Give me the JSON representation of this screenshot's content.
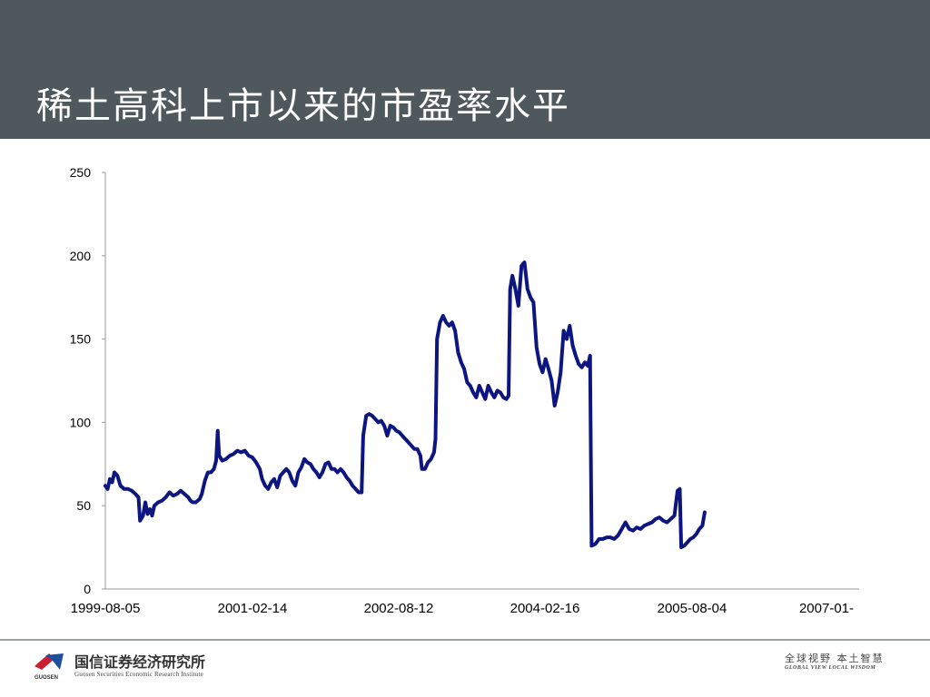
{
  "header": {
    "title": "稀土高科上市以来的市盈率水平"
  },
  "footer": {
    "org_cn": "国信证券经济研究所",
    "org_en": "Guosen Securities Economic Research Institute",
    "logo_text": "GUOSEN",
    "slogan_cn": "全球视野  本土智慧",
    "slogan_en": "GLOBAL VIEW   LOCAL WISDOM"
  },
  "colors": {
    "header_bg": "#4f585c",
    "series": "#0d1580",
    "logo_red": "#c8202e",
    "logo_blue": "#1e4f9a"
  },
  "chart_data": {
    "type": "line",
    "title": "",
    "xlabel": "",
    "ylabel": "",
    "ylim": [
      0,
      250
    ],
    "yticks": [
      0,
      50,
      100,
      150,
      200,
      250
    ],
    "xticklabels": [
      "1999-08-05",
      "2001-02-14",
      "2002-08-12",
      "2004-02-16",
      "2005-08-04",
      "2007-01-"
    ],
    "grid": false,
    "legend": "none",
    "series": [
      {
        "points": [
          [
            0.0,
            62
          ],
          [
            0.003,
            60
          ],
          [
            0.006,
            66
          ],
          [
            0.009,
            64
          ],
          [
            0.012,
            70
          ],
          [
            0.016,
            68
          ],
          [
            0.02,
            62
          ],
          [
            0.025,
            60
          ],
          [
            0.03,
            60
          ],
          [
            0.035,
            59
          ],
          [
            0.04,
            57
          ],
          [
            0.044,
            55
          ],
          [
            0.046,
            41
          ],
          [
            0.05,
            44
          ],
          [
            0.053,
            52
          ],
          [
            0.056,
            45
          ],
          [
            0.059,
            48
          ],
          [
            0.062,
            44
          ],
          [
            0.065,
            50
          ],
          [
            0.07,
            52
          ],
          [
            0.075,
            53
          ],
          [
            0.08,
            55
          ],
          [
            0.085,
            58
          ],
          [
            0.09,
            56
          ],
          [
            0.095,
            57
          ],
          [
            0.1,
            59
          ],
          [
            0.105,
            57
          ],
          [
            0.11,
            55
          ],
          [
            0.113,
            53
          ],
          [
            0.116,
            52
          ],
          [
            0.12,
            52
          ],
          [
            0.125,
            54
          ],
          [
            0.128,
            57
          ],
          [
            0.132,
            65
          ],
          [
            0.136,
            70
          ],
          [
            0.14,
            70
          ],
          [
            0.144,
            72
          ],
          [
            0.147,
            77
          ],
          [
            0.149,
            95
          ],
          [
            0.151,
            80
          ],
          [
            0.155,
            77
          ],
          [
            0.16,
            78
          ],
          [
            0.165,
            80
          ],
          [
            0.17,
            81
          ],
          [
            0.175,
            83
          ],
          [
            0.18,
            82
          ],
          [
            0.185,
            83
          ],
          [
            0.19,
            80
          ],
          [
            0.195,
            79
          ],
          [
            0.2,
            76
          ],
          [
            0.205,
            72
          ],
          [
            0.208,
            66
          ],
          [
            0.212,
            62
          ],
          [
            0.216,
            60
          ],
          [
            0.22,
            64
          ],
          [
            0.224,
            66
          ],
          [
            0.228,
            61
          ],
          [
            0.232,
            68
          ],
          [
            0.236,
            70
          ],
          [
            0.24,
            72
          ],
          [
            0.244,
            70
          ],
          [
            0.248,
            65
          ],
          [
            0.252,
            62
          ],
          [
            0.256,
            70
          ],
          [
            0.26,
            73
          ],
          [
            0.264,
            78
          ],
          [
            0.268,
            76
          ],
          [
            0.272,
            75
          ],
          [
            0.276,
            72
          ],
          [
            0.28,
            70
          ],
          [
            0.284,
            67
          ],
          [
            0.288,
            70
          ],
          [
            0.292,
            75
          ],
          [
            0.296,
            76
          ],
          [
            0.3,
            72
          ],
          [
            0.304,
            72
          ],
          [
            0.308,
            70
          ],
          [
            0.312,
            72
          ],
          [
            0.316,
            70
          ],
          [
            0.32,
            67
          ],
          [
            0.324,
            65
          ],
          [
            0.328,
            62
          ],
          [
            0.332,
            60
          ],
          [
            0.336,
            58
          ],
          [
            0.34,
            58
          ],
          [
            0.342,
            92
          ],
          [
            0.346,
            104
          ],
          [
            0.35,
            105
          ],
          [
            0.354,
            104
          ],
          [
            0.358,
            102
          ],
          [
            0.362,
            100
          ],
          [
            0.366,
            101
          ],
          [
            0.37,
            98
          ],
          [
            0.374,
            92
          ],
          [
            0.378,
            98
          ],
          [
            0.382,
            97
          ],
          [
            0.386,
            95
          ],
          [
            0.39,
            94
          ],
          [
            0.394,
            92
          ],
          [
            0.398,
            90
          ],
          [
            0.402,
            88
          ],
          [
            0.406,
            86
          ],
          [
            0.41,
            84
          ],
          [
            0.414,
            84
          ],
          [
            0.418,
            80
          ],
          [
            0.42,
            72
          ],
          [
            0.424,
            72
          ],
          [
            0.428,
            76
          ],
          [
            0.432,
            78
          ],
          [
            0.436,
            82
          ],
          [
            0.438,
            90
          ],
          [
            0.44,
            150
          ],
          [
            0.444,
            160
          ],
          [
            0.448,
            164
          ],
          [
            0.452,
            160
          ],
          [
            0.456,
            158
          ],
          [
            0.46,
            160
          ],
          [
            0.464,
            155
          ],
          [
            0.468,
            142
          ],
          [
            0.472,
            136
          ],
          [
            0.476,
            132
          ],
          [
            0.48,
            124
          ],
          [
            0.484,
            122
          ],
          [
            0.488,
            118
          ],
          [
            0.492,
            115
          ],
          [
            0.496,
            122
          ],
          [
            0.5,
            118
          ],
          [
            0.504,
            114
          ],
          [
            0.508,
            122
          ],
          [
            0.512,
            118
          ],
          [
            0.516,
            115
          ],
          [
            0.52,
            119
          ],
          [
            0.524,
            118
          ],
          [
            0.528,
            115
          ],
          [
            0.532,
            114
          ],
          [
            0.535,
            116
          ],
          [
            0.537,
            180
          ],
          [
            0.54,
            188
          ],
          [
            0.544,
            180
          ],
          [
            0.548,
            170
          ],
          [
            0.552,
            194
          ],
          [
            0.556,
            196
          ],
          [
            0.56,
            180
          ],
          [
            0.564,
            175
          ],
          [
            0.568,
            172
          ],
          [
            0.572,
            145
          ],
          [
            0.576,
            135
          ],
          [
            0.58,
            130
          ],
          [
            0.584,
            138
          ],
          [
            0.588,
            132
          ],
          [
            0.592,
            125
          ],
          [
            0.596,
            110
          ],
          [
            0.6,
            118
          ],
          [
            0.604,
            130
          ],
          [
            0.608,
            155
          ],
          [
            0.612,
            150
          ],
          [
            0.616,
            158
          ],
          [
            0.62,
            146
          ],
          [
            0.624,
            140
          ],
          [
            0.628,
            135
          ],
          [
            0.632,
            133
          ],
          [
            0.636,
            136
          ],
          [
            0.64,
            134
          ],
          [
            0.643,
            140
          ],
          [
            0.645,
            26
          ],
          [
            0.65,
            27
          ],
          [
            0.655,
            30
          ],
          [
            0.66,
            30
          ],
          [
            0.665,
            31
          ],
          [
            0.67,
            31
          ],
          [
            0.675,
            30
          ],
          [
            0.68,
            32
          ],
          [
            0.685,
            36
          ],
          [
            0.69,
            40
          ],
          [
            0.695,
            36
          ],
          [
            0.7,
            35
          ],
          [
            0.705,
            37
          ],
          [
            0.71,
            36
          ],
          [
            0.715,
            38
          ],
          [
            0.72,
            39
          ],
          [
            0.725,
            40
          ],
          [
            0.73,
            42
          ],
          [
            0.735,
            43
          ],
          [
            0.74,
            41
          ],
          [
            0.745,
            40
          ],
          [
            0.75,
            42
          ],
          [
            0.755,
            44
          ],
          [
            0.759,
            59
          ],
          [
            0.762,
            60
          ],
          [
            0.764,
            25
          ],
          [
            0.768,
            26
          ],
          [
            0.772,
            28
          ],
          [
            0.776,
            30
          ],
          [
            0.78,
            31
          ],
          [
            0.784,
            33
          ],
          [
            0.788,
            36
          ],
          [
            0.792,
            38
          ],
          [
            0.795,
            46
          ]
        ]
      }
    ]
  }
}
